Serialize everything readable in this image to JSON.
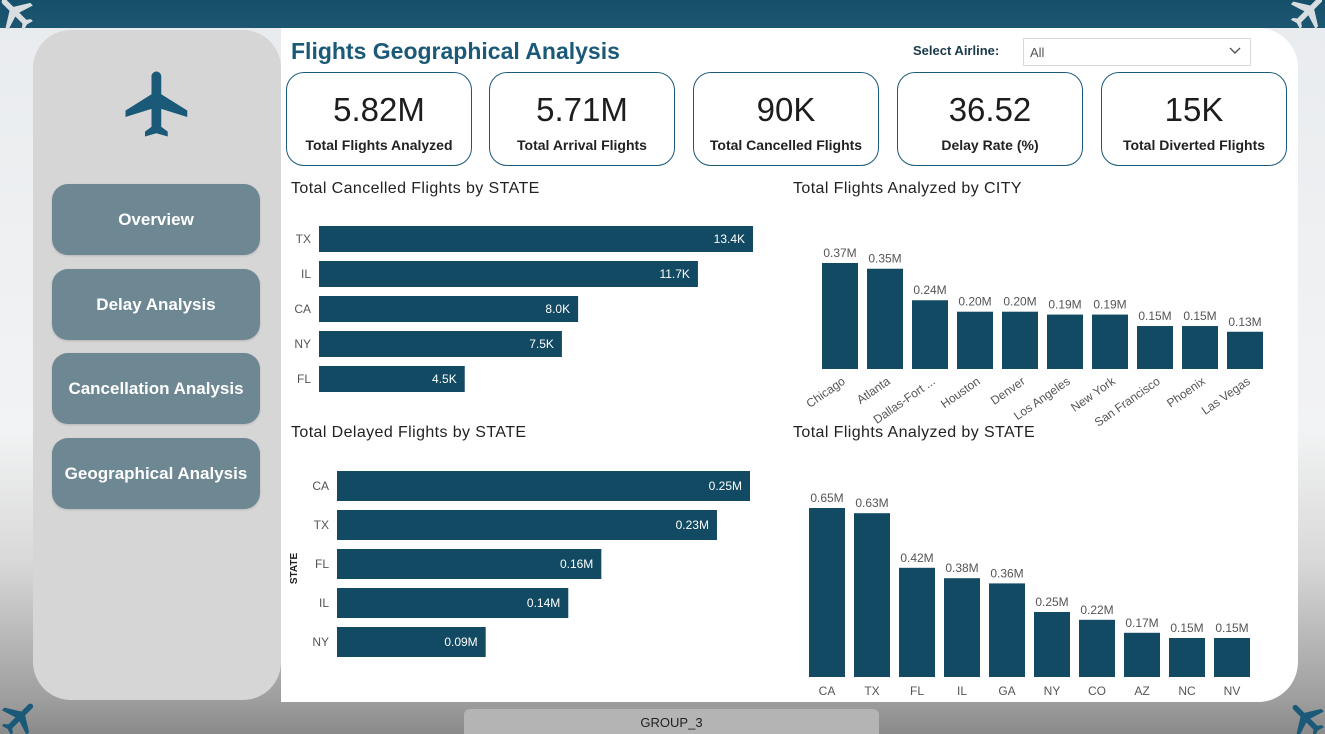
{
  "page": {
    "title": "Flights Geographical Analysis",
    "footer": "GROUP_3",
    "accent_color": "#124a63"
  },
  "filter": {
    "label": "Select Airline:",
    "value": "All"
  },
  "sidebar": {
    "logo_icon": "airplane-icon",
    "items": [
      {
        "label": "Overview"
      },
      {
        "label": "Delay Analysis"
      },
      {
        "label": "Cancellation Analysis"
      },
      {
        "label": "Geographical Analysis"
      }
    ]
  },
  "kpis": [
    {
      "value": "5.82M",
      "label": "Total Flights Analyzed"
    },
    {
      "value": "5.71M",
      "label": "Total Arrival Flights"
    },
    {
      "value": "90K",
      "label": "Total Cancelled Flights"
    },
    {
      "value": "36.52",
      "label": "Delay Rate (%)"
    },
    {
      "value": "15K",
      "label": "Total Diverted Flights"
    }
  ],
  "chart_data": [
    {
      "type": "bar",
      "orientation": "horizontal",
      "title": "Total Cancelled Flights by STATE",
      "categories": [
        "TX",
        "IL",
        "CA",
        "NY",
        "FL"
      ],
      "values": [
        13400,
        11700,
        8000,
        7500,
        4500
      ],
      "data_labels": [
        "13.4K",
        "11.7K",
        "8.0K",
        "7.5K",
        "4.5K"
      ],
      "xlabel": "",
      "ylabel": "",
      "color": "#124a63"
    },
    {
      "type": "bar",
      "orientation": "vertical",
      "title": "Total Flights Analyzed by CITY",
      "categories": [
        "Chicago",
        "Atlanta",
        "Dallas-Fort ...",
        "Houston",
        "Denver",
        "Los Angeles",
        "New York",
        "San Francisco",
        "Phoenix",
        "Las Vegas"
      ],
      "values": [
        370000,
        350000,
        240000,
        200000,
        200000,
        190000,
        190000,
        150000,
        150000,
        130000
      ],
      "data_labels": [
        "0.37M",
        "0.35M",
        "0.24M",
        "0.20M",
        "0.20M",
        "0.19M",
        "0.19M",
        "0.15M",
        "0.15M",
        "0.13M"
      ],
      "xlabel": "",
      "ylabel": "",
      "color": "#124a63"
    },
    {
      "type": "bar",
      "orientation": "horizontal",
      "title": "Total Delayed Flights by STATE",
      "categories": [
        "CA",
        "TX",
        "FL",
        "IL",
        "NY"
      ],
      "values": [
        250000,
        230000,
        160000,
        140000,
        90000
      ],
      "data_labels": [
        "0.25M",
        "0.23M",
        "0.16M",
        "0.14M",
        "0.09M"
      ],
      "xlabel": "",
      "ylabel": "STATE",
      "color": "#124a63"
    },
    {
      "type": "bar",
      "orientation": "vertical",
      "title": "Total Flights Analyzed by STATE",
      "categories": [
        "CA",
        "TX",
        "FL",
        "IL",
        "GA",
        "NY",
        "CO",
        "AZ",
        "NC",
        "NV"
      ],
      "values": [
        650000,
        630000,
        420000,
        380000,
        360000,
        250000,
        220000,
        170000,
        150000,
        150000
      ],
      "data_labels": [
        "0.65M",
        "0.63M",
        "0.42M",
        "0.38M",
        "0.36M",
        "0.25M",
        "0.22M",
        "0.17M",
        "0.15M",
        "0.15M"
      ],
      "xlabel": "",
      "ylabel": "",
      "color": "#124a63"
    }
  ]
}
